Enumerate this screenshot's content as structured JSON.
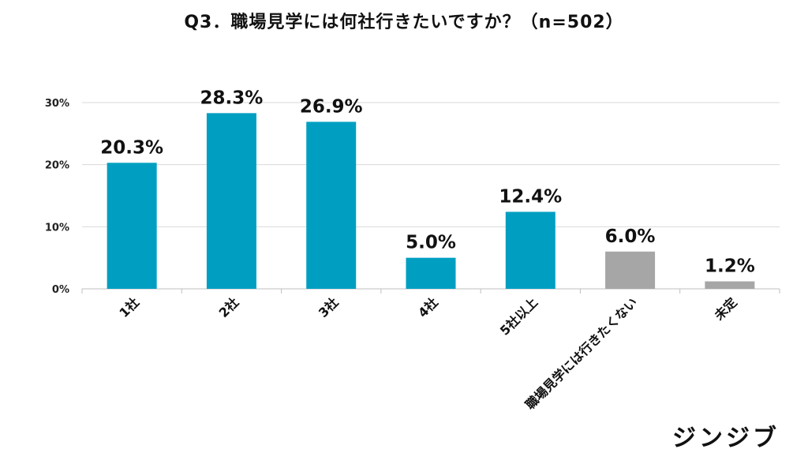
{
  "header": {
    "title": "Q3．職場見学には何社行きたいですか？（n=502）"
  },
  "logo": {
    "text": "ジンジブ"
  },
  "chart_data": {
    "type": "bar",
    "title": "Q3．職場見学には何社行きたいですか？（n=502）",
    "xlabel": "",
    "ylabel": "",
    "categories": [
      "1社",
      "2社",
      "3社",
      "4社",
      "5社以上",
      "職場見学には行きたくない",
      "未定"
    ],
    "values": [
      20.3,
      28.3,
      26.9,
      5.0,
      12.4,
      6.0,
      1.2
    ],
    "data_labels": [
      "20.3%",
      "28.3%",
      "26.9%",
      "5.0%",
      "12.4%",
      "6.0%",
      "1.2%"
    ],
    "ylim": [
      0,
      30
    ],
    "yticks": [
      0,
      10,
      20,
      30
    ],
    "ytick_labels": [
      "0%",
      "10%",
      "20%",
      "30%"
    ],
    "grid": true,
    "legend": "none",
    "colors": {
      "primary": "#009fc2",
      "secondary": "#a6a6a6",
      "grid": "#d9d9d9",
      "axis": "#bfbfbf"
    },
    "bar_colors": [
      "primary",
      "primary",
      "primary",
      "primary",
      "primary",
      "secondary",
      "secondary"
    ]
  }
}
